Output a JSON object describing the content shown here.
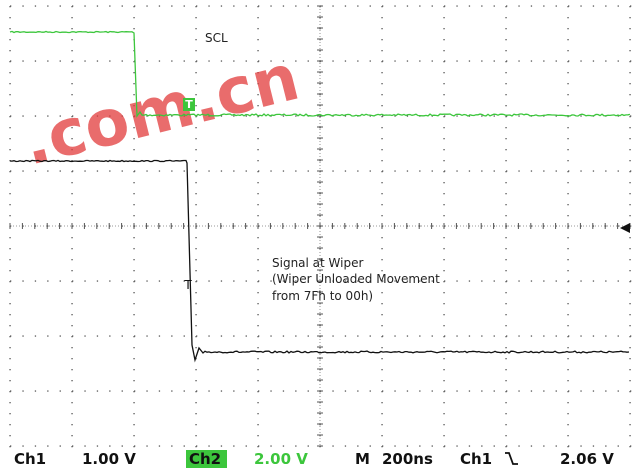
{
  "screen": {
    "watermark": ".com.cn",
    "labels": {
      "scl": "SCL",
      "wiper": [
        "Signal at Wiper",
        "(Wiper Unloaded Movement",
        "from 7Fh to 00h)"
      ]
    },
    "trigger_marker": "T",
    "status": {
      "ch1": "Ch1",
      "ch1_scale": "1.00 V",
      "ch2": "Ch2",
      "ch2_scale": "2.00 V",
      "mode": "M",
      "timebase": "200ns",
      "trigger_source": "Ch1",
      "trigger_level": "2.06 V"
    }
  }
}
